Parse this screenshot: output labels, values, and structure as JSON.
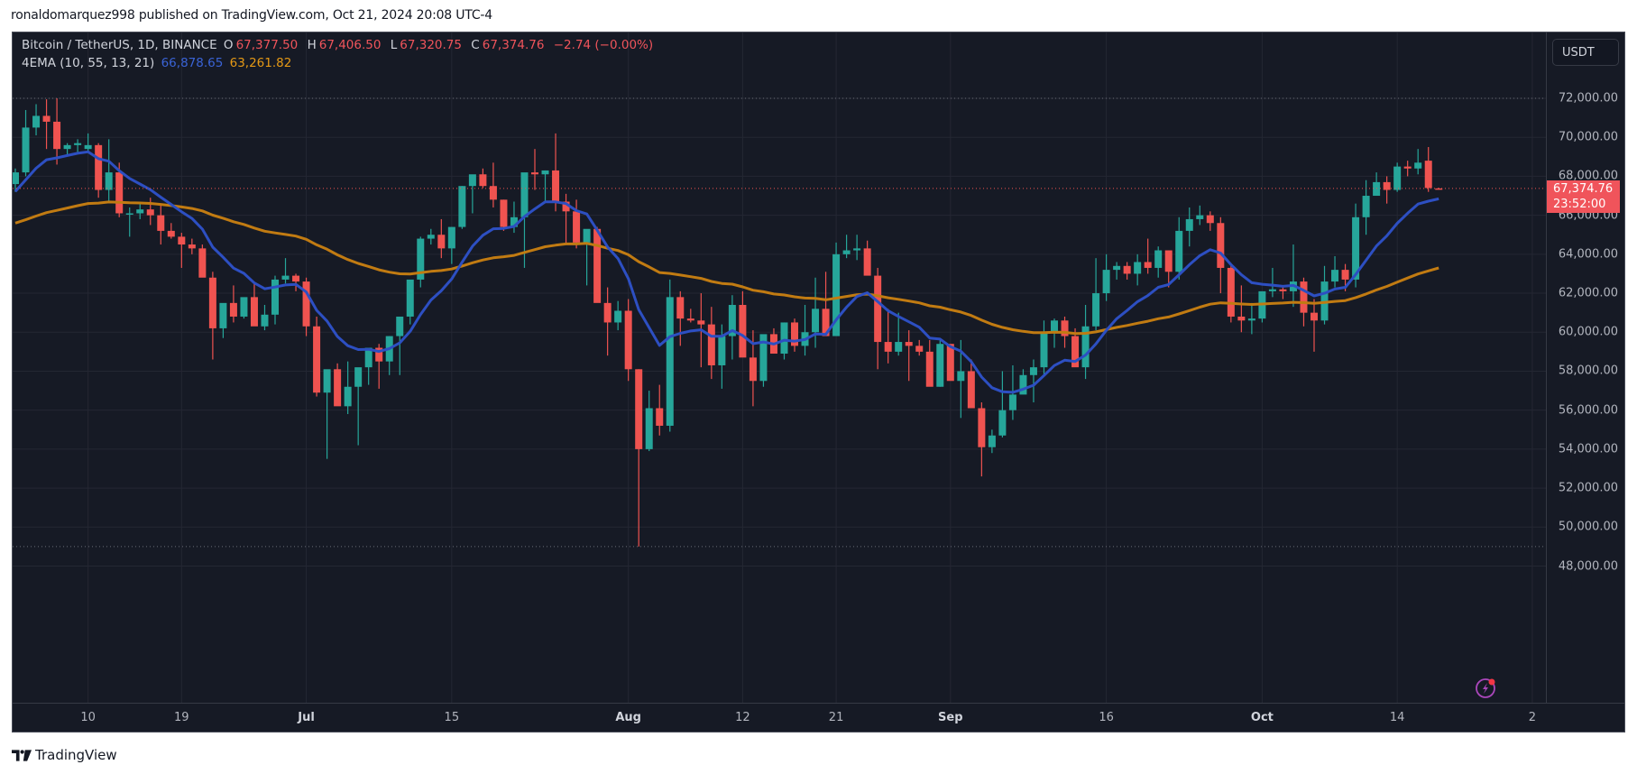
{
  "header": {
    "published": "ronaldomarquez998 published on TradingView.com, Oct 21, 2024 20:08 UTC-4"
  },
  "legend": {
    "symbol": "Bitcoin / TetherUS, 1D, BINANCE",
    "o_label": "O",
    "o_value": "67,377.50",
    "h_label": "H",
    "h_value": "67,406.50",
    "l_label": "L",
    "l_value": "67,320.75",
    "c_label": "C",
    "c_value": "67,374.76",
    "change": "−2.74 (−0.00%)",
    "indicator": "4EMA (10, 55, 13, 21)",
    "ema_fast": "66,878.65",
    "ema_slow": "63,261.82"
  },
  "price_axis": {
    "currency": "USDT",
    "ticks": [
      "72,000.00",
      "70,000.00",
      "68,000.00",
      "66,000.00",
      "64,000.00",
      "62,000.00",
      "60,000.00",
      "58,000.00",
      "56,000.00",
      "54,000.00",
      "52,000.00",
      "50,000.00",
      "48,000.00"
    ],
    "last_price": "67,374.76",
    "countdown": "23:52:00"
  },
  "time_axis": {
    "ticks": [
      {
        "label": "10",
        "day": 7,
        "month": false
      },
      {
        "label": "19",
        "day": 16,
        "month": false
      },
      {
        "label": "Jul",
        "day": 28,
        "month": true
      },
      {
        "label": "15",
        "day": 42,
        "month": false
      },
      {
        "label": "Aug",
        "day": 59,
        "month": true
      },
      {
        "label": "12",
        "day": 70,
        "month": false
      },
      {
        "label": "21",
        "day": 79,
        "month": false
      },
      {
        "label": "Sep",
        "day": 90,
        "month": true
      },
      {
        "label": "16",
        "day": 105,
        "month": false
      },
      {
        "label": "Oct",
        "day": 120,
        "month": true
      },
      {
        "label": "14",
        "day": 133,
        "month": false
      },
      {
        "label": "2",
        "day": 146,
        "month": false
      }
    ]
  },
  "footer": {
    "brand": "TradingView"
  },
  "colors": {
    "background": "#161a25",
    "up": "#26a69a",
    "down": "#ef5350",
    "ema_fast": "#2d4fc2",
    "ema_slow": "#c17b12",
    "grid": "#242733",
    "text": "#b2b5be"
  },
  "chart_data": {
    "type": "candlestick",
    "title": "Bitcoin / TetherUS, 1D, BINANCE",
    "xlabel": "",
    "ylabel": "USDT",
    "ylim": [
      46800,
      73300
    ],
    "x_range": [
      "2024-06-03",
      "2024-10-21"
    ],
    "hlines": [
      72000,
      49000
    ],
    "last_price": 67374.76,
    "candles_ohlc": [
      [
        67600,
        68400,
        67200,
        68200
      ],
      [
        68200,
        71400,
        68000,
        70500
      ],
      [
        70500,
        71700,
        70100,
        71100
      ],
      [
        71100,
        71950,
        69400,
        70800
      ],
      [
        70800,
        72000,
        68600,
        69400
      ],
      [
        69400,
        69700,
        69100,
        69600
      ],
      [
        69600,
        69900,
        69200,
        69700
      ],
      [
        69400,
        70200,
        69300,
        69600
      ],
      [
        69600,
        69700,
        66900,
        67300
      ],
      [
        67300,
        69900,
        66700,
        68200
      ],
      [
        68200,
        68700,
        65900,
        66100
      ],
      [
        66100,
        66400,
        64900,
        66100
      ],
      [
        66100,
        66700,
        65800,
        66300
      ],
      [
        66300,
        66900,
        65500,
        66000
      ],
      [
        66000,
        66600,
        64500,
        65200
      ],
      [
        65200,
        65600,
        64800,
        64900
      ],
      [
        64900,
        65100,
        63300,
        64500
      ],
      [
        64500,
        64800,
        64000,
        64300
      ],
      [
        64300,
        64500,
        63100,
        62800
      ],
      [
        62800,
        63100,
        58600,
        60200
      ],
      [
        60200,
        61400,
        59700,
        61500
      ],
      [
        61500,
        62400,
        60500,
        60800
      ],
      [
        60800,
        61600,
        60700,
        61800
      ],
      [
        61800,
        62500,
        60600,
        60300
      ],
      [
        60300,
        61400,
        60100,
        60900
      ],
      [
        60900,
        62900,
        60400,
        62700
      ],
      [
        62700,
        63800,
        62500,
        62900
      ],
      [
        62900,
        63000,
        62100,
        62600
      ],
      [
        62600,
        62800,
        59800,
        60300
      ],
      [
        60300,
        60800,
        56700,
        56900
      ],
      [
        56900,
        57900,
        53500,
        58100
      ],
      [
        58100,
        58400,
        56500,
        56200
      ],
      [
        56200,
        58500,
        55800,
        57200
      ],
      [
        57200,
        57400,
        54200,
        58200
      ],
      [
        58200,
        58600,
        57300,
        59200
      ],
      [
        59200,
        59400,
        57100,
        58500
      ],
      [
        58500,
        59800,
        57800,
        59800
      ],
      [
        59800,
        60300,
        57800,
        60800
      ],
      [
        60800,
        62400,
        60400,
        62700
      ],
      [
        62700,
        64900,
        62300,
        64800
      ],
      [
        64800,
        65300,
        64500,
        65000
      ],
      [
        65000,
        65800,
        63800,
        64300
      ],
      [
        64300,
        65400,
        63500,
        65400
      ],
      [
        65400,
        67500,
        65300,
        67500
      ],
      [
        67500,
        67600,
        66100,
        68100
      ],
      [
        68100,
        68400,
        67400,
        67500
      ],
      [
        67500,
        68700,
        66400,
        66800
      ],
      [
        66800,
        66800,
        65200,
        65400
      ],
      [
        65400,
        66700,
        65100,
        65900
      ],
      [
        65900,
        68000,
        63300,
        68200
      ],
      [
        68200,
        69400,
        67300,
        68100
      ],
      [
        68100,
        68300,
        66700,
        68300
      ],
      [
        68300,
        70200,
        66200,
        66700
      ],
      [
        66700,
        67100,
        64500,
        66200
      ],
      [
        66200,
        66800,
        64300,
        64600
      ],
      [
        64600,
        65200,
        62400,
        65300
      ],
      [
        65300,
        65400,
        62100,
        61500
      ],
      [
        61500,
        62300,
        58800,
        60500
      ],
      [
        60500,
        61600,
        60100,
        61100
      ],
      [
        61100,
        61700,
        57500,
        58100
      ],
      [
        58100,
        58100,
        49000,
        54000
      ],
      [
        54000,
        57000,
        53900,
        56100
      ],
      [
        56100,
        57300,
        54700,
        55200
      ],
      [
        55200,
        62700,
        54900,
        61800
      ],
      [
        61800,
        62100,
        59300,
        60700
      ],
      [
        60700,
        61200,
        60500,
        60600
      ],
      [
        60600,
        62000,
        58200,
        60400
      ],
      [
        60400,
        61300,
        57600,
        58300
      ],
      [
        58300,
        60400,
        57100,
        59800
      ],
      [
        59800,
        61900,
        58600,
        61400
      ],
      [
        61400,
        62100,
        59500,
        58700
      ],
      [
        58700,
        60100,
        56200,
        57500
      ],
      [
        57500,
        59700,
        57200,
        59900
      ],
      [
        59900,
        60200,
        59500,
        58900
      ],
      [
        58900,
        60500,
        58600,
        60500
      ],
      [
        60500,
        60700,
        59000,
        59300
      ],
      [
        59300,
        61400,
        58800,
        60000
      ],
      [
        60000,
        62800,
        59200,
        61200
      ],
      [
        61200,
        63100,
        60200,
        59800
      ],
      [
        59800,
        64600,
        60600,
        64000
      ],
      [
        64000,
        65000,
        63800,
        64200
      ],
      [
        64200,
        65000,
        63700,
        64300
      ],
      [
        64300,
        64700,
        63400,
        62900
      ],
      [
        62900,
        63300,
        58100,
        59500
      ],
      [
        59500,
        61200,
        58400,
        59000
      ],
      [
        59000,
        61000,
        58800,
        59500
      ],
      [
        59500,
        60100,
        57500,
        59300
      ],
      [
        59300,
        59600,
        58800,
        59000
      ],
      [
        59000,
        59600,
        57600,
        57200
      ],
      [
        57200,
        59700,
        57200,
        59400
      ],
      [
        59400,
        59300,
        57600,
        57500
      ],
      [
        57500,
        59600,
        55600,
        58000
      ],
      [
        58000,
        58600,
        56400,
        56100
      ],
      [
        56100,
        56400,
        52600,
        54100
      ],
      [
        54100,
        55000,
        53800,
        54700
      ],
      [
        54700,
        58000,
        54600,
        56000
      ],
      [
        56000,
        58300,
        55500,
        56800
      ],
      [
        56800,
        58100,
        57100,
        57800
      ],
      [
        57800,
        58600,
        56400,
        58200
      ],
      [
        58200,
        60600,
        57800,
        60000
      ],
      [
        60000,
        60700,
        59200,
        60600
      ],
      [
        60600,
        60800,
        59200,
        59800
      ],
      [
        59800,
        60200,
        58600,
        58200
      ],
      [
        58200,
        61400,
        57600,
        60300
      ],
      [
        60300,
        63800,
        60100,
        62000
      ],
      [
        62000,
        64000,
        61600,
        63200
      ],
      [
        63200,
        63600,
        62700,
        63400
      ],
      [
        63400,
        63600,
        62700,
        63000
      ],
      [
        63000,
        64000,
        62400,
        63600
      ],
      [
        63600,
        64800,
        63000,
        63300
      ],
      [
        63300,
        64400,
        62800,
        64200
      ],
      [
        64200,
        64200,
        62300,
        63100
      ],
      [
        63100,
        65900,
        62700,
        65200
      ],
      [
        65200,
        66400,
        64400,
        65800
      ],
      [
        65800,
        66500,
        65500,
        66000
      ],
      [
        66000,
        66200,
        65200,
        65600
      ],
      [
        65600,
        65900,
        62000,
        63300
      ],
      [
        63300,
        63500,
        60500,
        60800
      ],
      [
        60800,
        62400,
        60000,
        60600
      ],
      [
        60600,
        61500,
        59900,
        60700
      ],
      [
        60700,
        62000,
        60500,
        62100
      ],
      [
        62100,
        63300,
        61800,
        62200
      ],
      [
        62200,
        62300,
        61700,
        62100
      ],
      [
        62100,
        64500,
        61300,
        62600
      ],
      [
        62600,
        62800,
        60300,
        61000
      ],
      [
        61000,
        61700,
        59000,
        60600
      ],
      [
        60600,
        63400,
        60400,
        62600
      ],
      [
        62600,
        63900,
        62300,
        63200
      ],
      [
        63200,
        63500,
        62100,
        62700
      ],
      [
        62700,
        66600,
        62300,
        65900
      ],
      [
        65900,
        67800,
        65000,
        67000
      ],
      [
        67000,
        68200,
        67000,
        67700
      ],
      [
        67700,
        68000,
        66600,
        67300
      ],
      [
        67300,
        68700,
        67200,
        68500
      ],
      [
        68500,
        68800,
        68000,
        68400
      ],
      [
        68400,
        69400,
        68100,
        68700
      ],
      [
        68800,
        69500,
        67200,
        67400
      ],
      [
        67377.5,
        67406.5,
        67320.75,
        67374.76
      ]
    ],
    "series": [
      {
        "name": "EMA 10 (fast)",
        "last": 66878.65,
        "color": "#2d4fc2"
      },
      {
        "name": "EMA 55 (slow)",
        "last": 63261.82,
        "color": "#c17b12"
      }
    ]
  }
}
